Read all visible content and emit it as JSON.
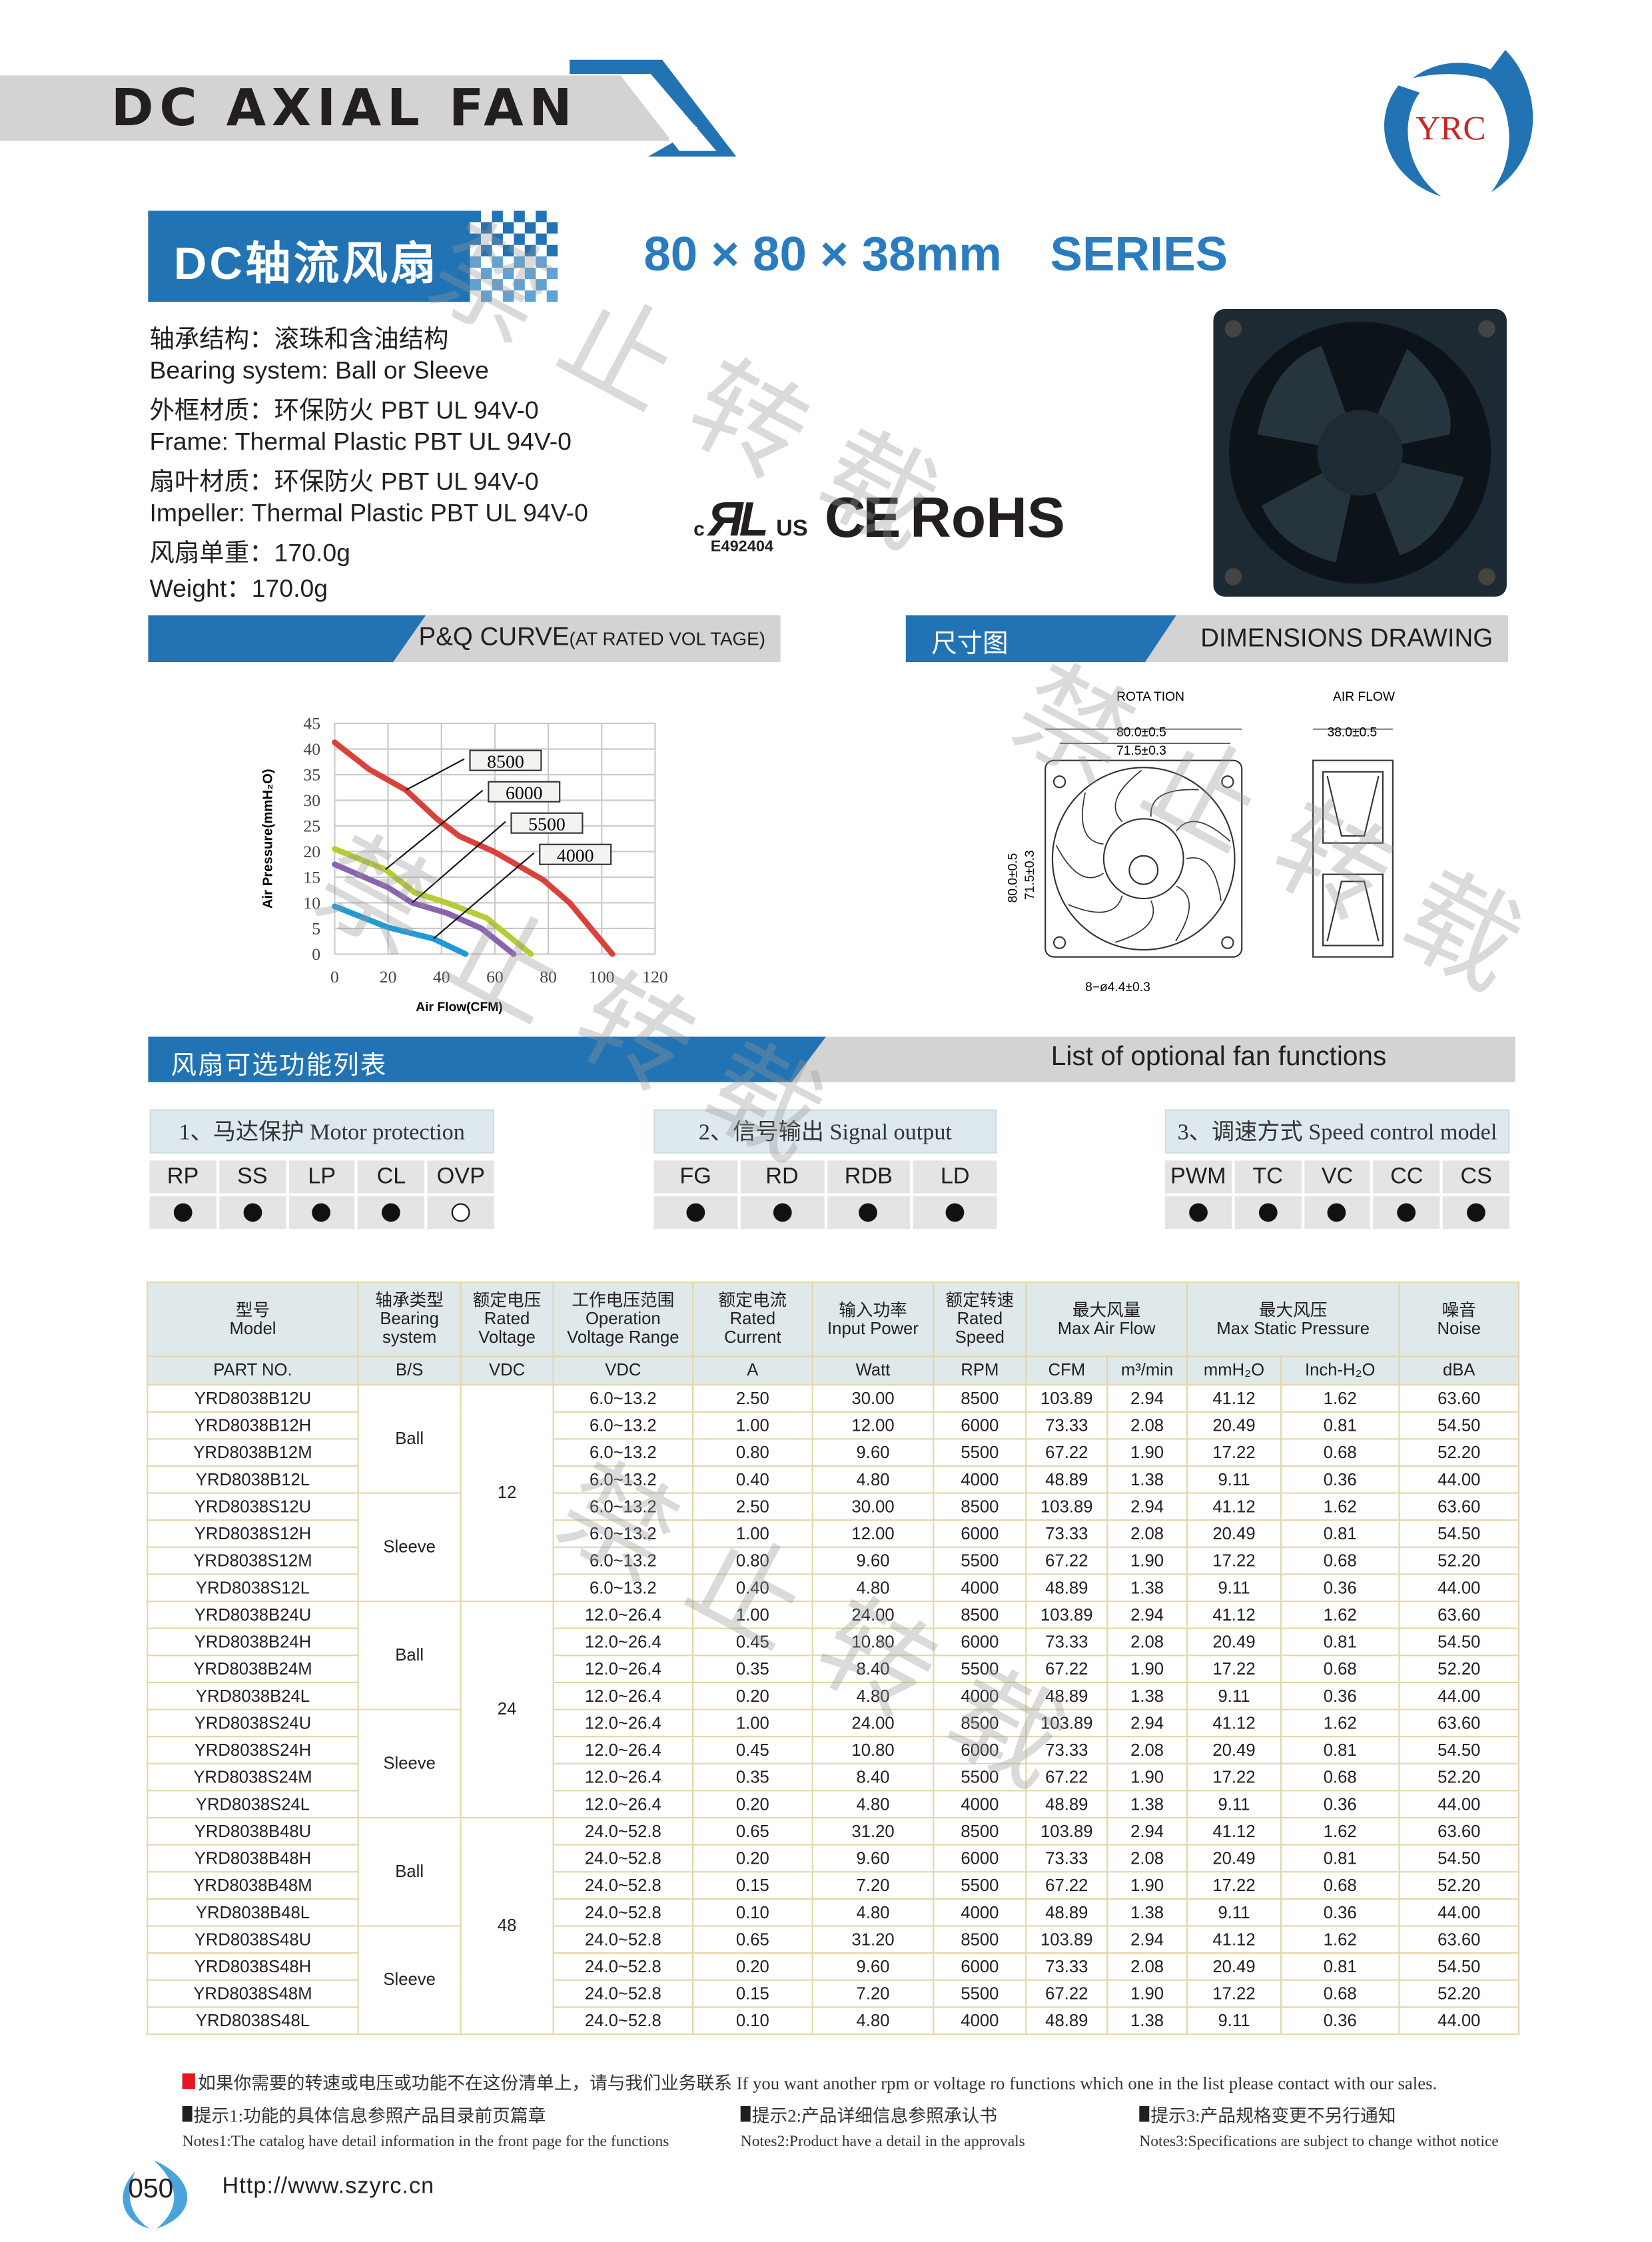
{
  "header": {
    "title": "DC AXIAL FAN",
    "brand": "YRC"
  },
  "product": {
    "cn_title": "DC轴流风扇",
    "size": "80 × 80 × 38mm",
    "series": "SERIES"
  },
  "specs": [
    "轴承结构：滚珠和含油结构",
    "Bearing system:  Ball or Sleeve",
    "外框材质：环保防火 PBT UL 94V-0",
    "Frame: Thermal Plastic PBT UL 94V-0",
    "扇叶材质：环保防火 PBT UL 94V-0",
    "Impeller:  Thermal Plastic PBT UL 94V-0",
    "风扇单重：170.0g",
    "Weight：170.0g"
  ],
  "certs": {
    "ul_number": "E492404",
    "ce": "CE",
    "rohs": "RoHS"
  },
  "sections": {
    "pq_title": "P&Q CURVE",
    "pq_sub": "(AT RATED VOL TAGE)",
    "dim_cn": "尺寸图",
    "dim_en": "DIMENSIONS  DRAWING",
    "func_cn": "风扇可选功能列表",
    "func_en": "List of optional fan functions"
  },
  "chart_data": {
    "type": "line",
    "xlabel": "Air Flow(CFM)",
    "ylabel": "Air Pressure(mmH₂O)",
    "xlim": [
      0,
      120
    ],
    "ylim": [
      0,
      45
    ],
    "grid": true,
    "xticks": [
      "0",
      "20",
      "40",
      "60",
      "80",
      "100",
      "120"
    ],
    "yticks": [
      "0",
      "5",
      "10",
      "15",
      "20",
      "25",
      "30",
      "35",
      "40",
      "45"
    ],
    "series": [
      {
        "name": "8500",
        "color": "#d9423a",
        "points": [
          [
            0,
            41.3
          ],
          [
            13,
            36
          ],
          [
            26.7,
            32
          ],
          [
            38,
            26.5
          ],
          [
            46.7,
            23
          ],
          [
            59.6,
            20
          ],
          [
            78,
            14.5
          ],
          [
            88,
            10
          ],
          [
            104,
            0
          ]
        ]
      },
      {
        "name": "6000",
        "color": "#b5cc34",
        "points": [
          [
            0,
            20.5
          ],
          [
            19,
            16.5
          ],
          [
            30,
            12
          ],
          [
            42,
            10
          ],
          [
            57,
            7
          ],
          [
            73.5,
            0
          ]
        ]
      },
      {
        "name": "5500",
        "color": "#8a62b0",
        "points": [
          [
            0,
            17.5
          ],
          [
            20,
            13
          ],
          [
            29,
            10
          ],
          [
            42,
            8
          ],
          [
            55,
            5
          ],
          [
            67,
            0
          ]
        ]
      },
      {
        "name": "4000",
        "color": "#1f9ad6",
        "points": [
          [
            0,
            9.3
          ],
          [
            20,
            5.2
          ],
          [
            37,
            3
          ],
          [
            43,
            1.5
          ],
          [
            49,
            0
          ]
        ]
      }
    ]
  },
  "dimensions": {
    "rotation": "ROTA  TION",
    "airflow": "AIR  FLOW",
    "w1": "80.0±0.5",
    "w2": "71.5±0.3",
    "h1": "80.0±0.5",
    "h2": "71.5±0.3",
    "depth": "38.0±0.5",
    "holes": "8−ø4.4±0.3"
  },
  "functions": [
    {
      "label": "1、马达保护 Motor protection",
      "items": [
        {
          "code": "RP",
          "on": true
        },
        {
          "code": "SS",
          "on": true
        },
        {
          "code": "LP",
          "on": true
        },
        {
          "code": "CL",
          "on": true
        },
        {
          "code": "OVP",
          "on": false
        }
      ]
    },
    {
      "label": "2、信号输出 Signal output",
      "items": [
        {
          "code": "FG",
          "on": true
        },
        {
          "code": "RD",
          "on": true
        },
        {
          "code": "RDB",
          "on": true
        },
        {
          "code": "LD",
          "on": true
        }
      ]
    },
    {
      "label": "3、调速方式 Speed control model",
      "items": [
        {
          "code": "PWM",
          "on": true
        },
        {
          "code": "TC",
          "on": true
        },
        {
          "code": "VC",
          "on": true
        },
        {
          "code": "CC",
          "on": true
        },
        {
          "code": "CS",
          "on": true
        }
      ]
    }
  ],
  "table": {
    "headers": [
      [
        "型号",
        "Model"
      ],
      [
        "轴承类型",
        "Bearing",
        "system"
      ],
      [
        "额定电压",
        "Rated",
        "Voltage"
      ],
      [
        "工作电压范围",
        "Operation",
        "Voltage Range"
      ],
      [
        "额定电流",
        "Rated",
        "Current"
      ],
      [
        "输入功率",
        "Input Power"
      ],
      [
        "额定转速",
        "Rated",
        "Speed"
      ],
      [
        "最大风量",
        "Max Air Flow"
      ],
      [
        "最大风压",
        "Max Static Pressure"
      ],
      [
        "噪音",
        "Noise"
      ]
    ],
    "units": [
      "PART NO.",
      "B/S",
      "VDC",
      "VDC",
      "A",
      "Watt",
      "RPM",
      "CFM",
      "m³/min",
      "mmH₂O",
      "Inch-H₂O",
      "dBA"
    ],
    "rows": [
      [
        "YRD8038B12U",
        "Ball",
        "12",
        "6.0~13.2",
        "2.50",
        "30.00",
        "8500",
        "103.89",
        "2.94",
        "41.12",
        "1.62",
        "63.60"
      ],
      [
        "YRD8038B12H",
        "Ball",
        "12",
        "6.0~13.2",
        "1.00",
        "12.00",
        "6000",
        "73.33",
        "2.08",
        "20.49",
        "0.81",
        "54.50"
      ],
      [
        "YRD8038B12M",
        "Ball",
        "12",
        "6.0~13.2",
        "0.80",
        "9.60",
        "5500",
        "67.22",
        "1.90",
        "17.22",
        "0.68",
        "52.20"
      ],
      [
        "YRD8038B12L",
        "Ball",
        "12",
        "6.0~13.2",
        "0.40",
        "4.80",
        "4000",
        "48.89",
        "1.38",
        "9.11",
        "0.36",
        "44.00"
      ],
      [
        "YRD8038S12U",
        "Sleeve",
        "12",
        "6.0~13.2",
        "2.50",
        "30.00",
        "8500",
        "103.89",
        "2.94",
        "41.12",
        "1.62",
        "63.60"
      ],
      [
        "YRD8038S12H",
        "Sleeve",
        "12",
        "6.0~13.2",
        "1.00",
        "12.00",
        "6000",
        "73.33",
        "2.08",
        "20.49",
        "0.81",
        "54.50"
      ],
      [
        "YRD8038S12M",
        "Sleeve",
        "12",
        "6.0~13.2",
        "0.80",
        "9.60",
        "5500",
        "67.22",
        "1.90",
        "17.22",
        "0.68",
        "52.20"
      ],
      [
        "YRD8038S12L",
        "Sleeve",
        "12",
        "6.0~13.2",
        "0.40",
        "4.80",
        "4000",
        "48.89",
        "1.38",
        "9.11",
        "0.36",
        "44.00"
      ],
      [
        "YRD8038B24U",
        "Ball",
        "24",
        "12.0~26.4",
        "1.00",
        "24.00",
        "8500",
        "103.89",
        "2.94",
        "41.12",
        "1.62",
        "63.60"
      ],
      [
        "YRD8038B24H",
        "Ball",
        "24",
        "12.0~26.4",
        "0.45",
        "10.80",
        "6000",
        "73.33",
        "2.08",
        "20.49",
        "0.81",
        "54.50"
      ],
      [
        "YRD8038B24M",
        "Ball",
        "24",
        "12.0~26.4",
        "0.35",
        "8.40",
        "5500",
        "67.22",
        "1.90",
        "17.22",
        "0.68",
        "52.20"
      ],
      [
        "YRD8038B24L",
        "Ball",
        "24",
        "12.0~26.4",
        "0.20",
        "4.80",
        "4000",
        "48.89",
        "1.38",
        "9.11",
        "0.36",
        "44.00"
      ],
      [
        "YRD8038S24U",
        "Sleeve",
        "24",
        "12.0~26.4",
        "1.00",
        "24.00",
        "8500",
        "103.89",
        "2.94",
        "41.12",
        "1.62",
        "63.60"
      ],
      [
        "YRD8038S24H",
        "Sleeve",
        "24",
        "12.0~26.4",
        "0.45",
        "10.80",
        "6000",
        "73.33",
        "2.08",
        "20.49",
        "0.81",
        "54.50"
      ],
      [
        "YRD8038S24M",
        "Sleeve",
        "24",
        "12.0~26.4",
        "0.35",
        "8.40",
        "5500",
        "67.22",
        "1.90",
        "17.22",
        "0.68",
        "52.20"
      ],
      [
        "YRD8038S24L",
        "Sleeve",
        "24",
        "12.0~26.4",
        "0.20",
        "4.80",
        "4000",
        "48.89",
        "1.38",
        "9.11",
        "0.36",
        "44.00"
      ],
      [
        "YRD8038B48U",
        "Ball",
        "48",
        "24.0~52.8",
        "0.65",
        "31.20",
        "8500",
        "103.89",
        "2.94",
        "41.12",
        "1.62",
        "63.60"
      ],
      [
        "YRD8038B48H",
        "Ball",
        "48",
        "24.0~52.8",
        "0.20",
        "9.60",
        "6000",
        "73.33",
        "2.08",
        "20.49",
        "0.81",
        "54.50"
      ],
      [
        "YRD8038B48M",
        "Ball",
        "48",
        "24.0~52.8",
        "0.15",
        "7.20",
        "5500",
        "67.22",
        "1.90",
        "17.22",
        "0.68",
        "52.20"
      ],
      [
        "YRD8038B48L",
        "Ball",
        "48",
        "24.0~52.8",
        "0.10",
        "4.80",
        "4000",
        "48.89",
        "1.38",
        "9.11",
        "0.36",
        "44.00"
      ],
      [
        "YRD8038S48U",
        "Sleeve",
        "48",
        "24.0~52.8",
        "0.65",
        "31.20",
        "8500",
        "103.89",
        "2.94",
        "41.12",
        "1.62",
        "63.60"
      ],
      [
        "YRD8038S48H",
        "Sleeve",
        "48",
        "24.0~52.8",
        "0.20",
        "9.60",
        "6000",
        "73.33",
        "2.08",
        "20.49",
        "0.81",
        "54.50"
      ],
      [
        "YRD8038S48M",
        "Sleeve",
        "48",
        "24.0~52.8",
        "0.15",
        "7.20",
        "5500",
        "67.22",
        "1.90",
        "17.22",
        "0.68",
        "52.20"
      ],
      [
        "YRD8038S48L",
        "Sleeve",
        "48",
        "24.0~52.8",
        "0.10",
        "4.80",
        "4000",
        "48.89",
        "1.38",
        "9.11",
        "0.36",
        "44.00"
      ]
    ]
  },
  "footer": {
    "contact": "如果你需要的转速或电压或功能不在这份清单上，请与我们业务联系 If you want another rpm or voltage ro functions which one in the list please contact with our sales.",
    "tips": [
      {
        "cn": "提示1:功能的具体信息参照产品目录前页篇章",
        "en": "Notes1:The catalog have detail information in the front page for the functions"
      },
      {
        "cn": "提示2:产品详细信息参照承认书",
        "en": "Notes2:Product have a detail in the approvals"
      },
      {
        "cn": "提示3:产品规格变更不另行通知",
        "en": "Notes3:Specifications are subject to change withot notice"
      }
    ],
    "page": "050",
    "url": "Http://www.szyrc.cn"
  },
  "watermark": "禁止转载",
  "colors": {
    "brand_blue": "#2273b4",
    "series_blue": "#2a7cc0",
    "table_border": "#e3d6a8",
    "header_bg": "#dfe8eb"
  }
}
